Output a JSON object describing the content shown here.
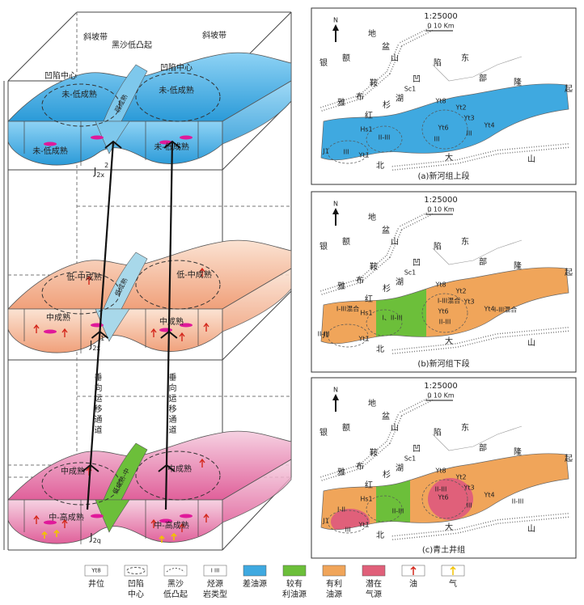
{
  "block": {
    "layers": [
      {
        "label": {
          "base": "J",
          "sub": "2x",
          "sup": "2"
        },
        "texts": [
          "斜坡带",
          "黑沙低凸起",
          "凹陷中心",
          "斜坡带",
          "凹陷中心",
          "未-低成熟",
          "未-低成熟",
          "未-低成熟",
          "未-低成熟",
          "弱成熟"
        ]
      },
      {
        "label": {
          "base": "J",
          "sub": "2x",
          "sup": "1"
        },
        "texts": [
          "低-中成熟",
          "低-中成熟",
          "中成熟",
          "中成熟",
          "低成熟"
        ]
      },
      {
        "label": {
          "base": "J",
          "sub": "2q"
        },
        "texts": [
          "中成熟",
          "中成熟",
          "中-高成熟",
          "中-高成熟",
          "低成熟-中"
        ]
      }
    ],
    "migration_labels": [
      "垂向运移通道",
      "垂向运移通道"
    ]
  },
  "maps": {
    "scale": "1:25000",
    "scale_bar": "0     10 Km",
    "north": "N",
    "places": [
      "地",
      "盆",
      "银",
      "额",
      "山",
      "凹",
      "陷",
      "东",
      "鞍",
      "部",
      "隆",
      "起",
      "雅",
      "布",
      "湖",
      "红",
      "杉",
      "大",
      "山",
      "北"
    ],
    "wells": [
      "Yt8",
      "Yt2",
      "Yt3",
      "Yt6",
      "Yt4",
      "Hs1",
      "Yt1",
      "J1",
      "Sc1"
    ],
    "panels": [
      {
        "caption": "(a)新河组上段",
        "zones": [
          "III",
          "II-III",
          "III",
          "III"
        ]
      },
      {
        "caption": "(b)新河组下段",
        "zones": [
          "I-III混合",
          "II-III",
          "I、II-III",
          "I-III混合",
          "II-III",
          "I-III混合"
        ]
      },
      {
        "caption": "(c)青土井组",
        "zones": [
          "I-II",
          "III",
          "II-III",
          "II-III",
          "III",
          "II-III"
        ]
      }
    ]
  },
  "legend": {
    "items": [
      {
        "symbol": "Yt8",
        "lines": [
          "井位"
        ]
      },
      {
        "lines": [
          "凹陷",
          "中心"
        ]
      },
      {
        "lines": [
          "黑沙",
          "低凸起"
        ]
      },
      {
        "symbol": "I III",
        "lines": [
          "烃源",
          "岩类型"
        ]
      },
      {
        "lines": [
          "差油源"
        ],
        "color": "#3fa9e0"
      },
      {
        "lines": [
          "较有",
          "利油源"
        ],
        "color": "#6cbf3a"
      },
      {
        "lines": [
          "有利",
          "油源"
        ],
        "color": "#f0a55a"
      },
      {
        "lines": [
          "潜在",
          "气源"
        ],
        "color": "#e0607a"
      },
      {
        "lines": [
          "油"
        ]
      },
      {
        "lines": [
          "气"
        ]
      }
    ]
  }
}
